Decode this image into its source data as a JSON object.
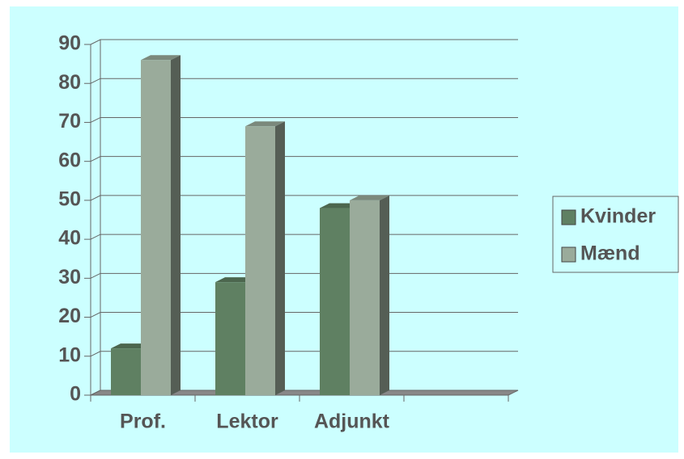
{
  "chart_data": {
    "type": "bar",
    "categories": [
      "Prof.",
      "Lektor",
      "Adjunkt",
      null
    ],
    "series": [
      {
        "name": "Kvinder",
        "color": "#5f8062",
        "values": [
          12,
          29,
          48,
          null
        ]
      },
      {
        "name": "Mænd",
        "color": "#9aab9b",
        "values": [
          86,
          69,
          50,
          null
        ]
      }
    ],
    "ylim": [
      0,
      90
    ],
    "yticks": [
      0,
      10,
      20,
      30,
      40,
      50,
      60,
      70,
      80,
      90
    ],
    "grid": true,
    "legend": "right"
  }
}
